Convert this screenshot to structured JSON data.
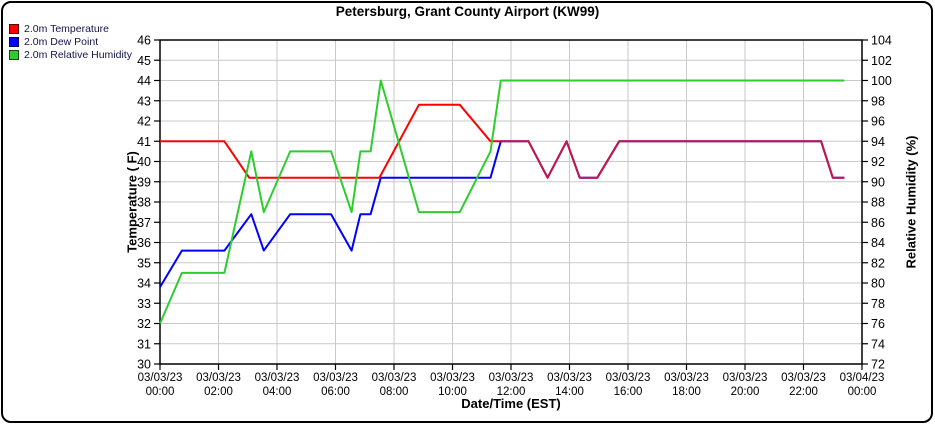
{
  "chart_data": {
    "type": "line",
    "title": "Petersburg, Grant County Airport (KW99)",
    "xlabel": "Date/Time (EST)",
    "ylabel_left": "Temperature ( F)",
    "ylabel_right": "Relative Humidity (%)",
    "x_range": [
      0,
      24
    ],
    "x_tick_step_hours": 2,
    "x_ticks": [
      {
        "date": "03/03/23",
        "time": "00:00"
      },
      {
        "date": "03/03/23",
        "time": "02:00"
      },
      {
        "date": "03/03/23",
        "time": "04:00"
      },
      {
        "date": "03/03/23",
        "time": "06:00"
      },
      {
        "date": "03/03/23",
        "time": "08:00"
      },
      {
        "date": "03/03/23",
        "time": "10:00"
      },
      {
        "date": "03/03/23",
        "time": "12:00"
      },
      {
        "date": "03/03/23",
        "time": "14:00"
      },
      {
        "date": "03/03/23",
        "time": "16:00"
      },
      {
        "date": "03/03/23",
        "time": "18:00"
      },
      {
        "date": "03/03/23",
        "time": "20:00"
      },
      {
        "date": "03/03/23",
        "time": "22:00"
      },
      {
        "date": "03/04/23",
        "time": "00:00"
      }
    ],
    "y_left_range": [
      30,
      46
    ],
    "y_left_tick_step": 1,
    "y_right_range": [
      72,
      104
    ],
    "y_right_tick_step": 2,
    "grid": true,
    "legend_position": "top-left",
    "overlap_color": "#c81446",
    "overlap_start_hour": 11.65,
    "series": [
      {
        "name": "2.0m Temperature",
        "color": "#ff0000",
        "axis": "left",
        "units": "F",
        "points": [
          [
            0,
            41
          ],
          [
            2.2,
            41
          ],
          [
            3.05,
            39.2
          ],
          [
            7.5,
            39.2
          ],
          [
            8.85,
            42.8
          ],
          [
            10.25,
            42.8
          ],
          [
            11.3,
            41
          ],
          [
            11.65,
            41
          ],
          [
            12.6,
            41
          ],
          [
            13.25,
            39.2
          ],
          [
            13.9,
            41
          ],
          [
            14.35,
            39.2
          ],
          [
            14.95,
            39.2
          ],
          [
            15.7,
            41
          ],
          [
            22.6,
            41
          ],
          [
            23.0,
            39.2
          ],
          [
            23.4,
            39.2
          ]
        ]
      },
      {
        "name": "2.0m Dew Point",
        "color": "#0000ff",
        "axis": "left",
        "units": "F",
        "points": [
          [
            0,
            33.8
          ],
          [
            0.75,
            35.6
          ],
          [
            2.2,
            35.6
          ],
          [
            3.12,
            37.4
          ],
          [
            3.55,
            35.6
          ],
          [
            4.45,
            37.4
          ],
          [
            5.85,
            37.4
          ],
          [
            6.55,
            35.6
          ],
          [
            6.85,
            37.4
          ],
          [
            7.2,
            37.4
          ],
          [
            7.55,
            39.2
          ],
          [
            11.3,
            39.2
          ],
          [
            11.65,
            41
          ],
          [
            12.6,
            41
          ],
          [
            13.25,
            39.2
          ],
          [
            13.9,
            41
          ],
          [
            14.35,
            39.2
          ],
          [
            14.95,
            39.2
          ],
          [
            15.7,
            41
          ],
          [
            22.6,
            41
          ],
          [
            23.0,
            39.2
          ],
          [
            23.4,
            39.2
          ]
        ]
      },
      {
        "name": "2.0m Relative Humidity",
        "color": "#2ecc2e",
        "axis": "right",
        "units": "%",
        "points": [
          [
            0,
            76
          ],
          [
            0.75,
            81
          ],
          [
            2.2,
            81
          ],
          [
            3.12,
            93
          ],
          [
            3.55,
            87
          ],
          [
            4.45,
            93
          ],
          [
            5.85,
            93
          ],
          [
            6.55,
            87
          ],
          [
            6.85,
            93
          ],
          [
            7.2,
            93
          ],
          [
            7.55,
            100
          ],
          [
            8.85,
            87
          ],
          [
            10.25,
            87
          ],
          [
            11.3,
            93
          ],
          [
            11.65,
            100
          ],
          [
            23.4,
            100
          ]
        ]
      }
    ]
  }
}
